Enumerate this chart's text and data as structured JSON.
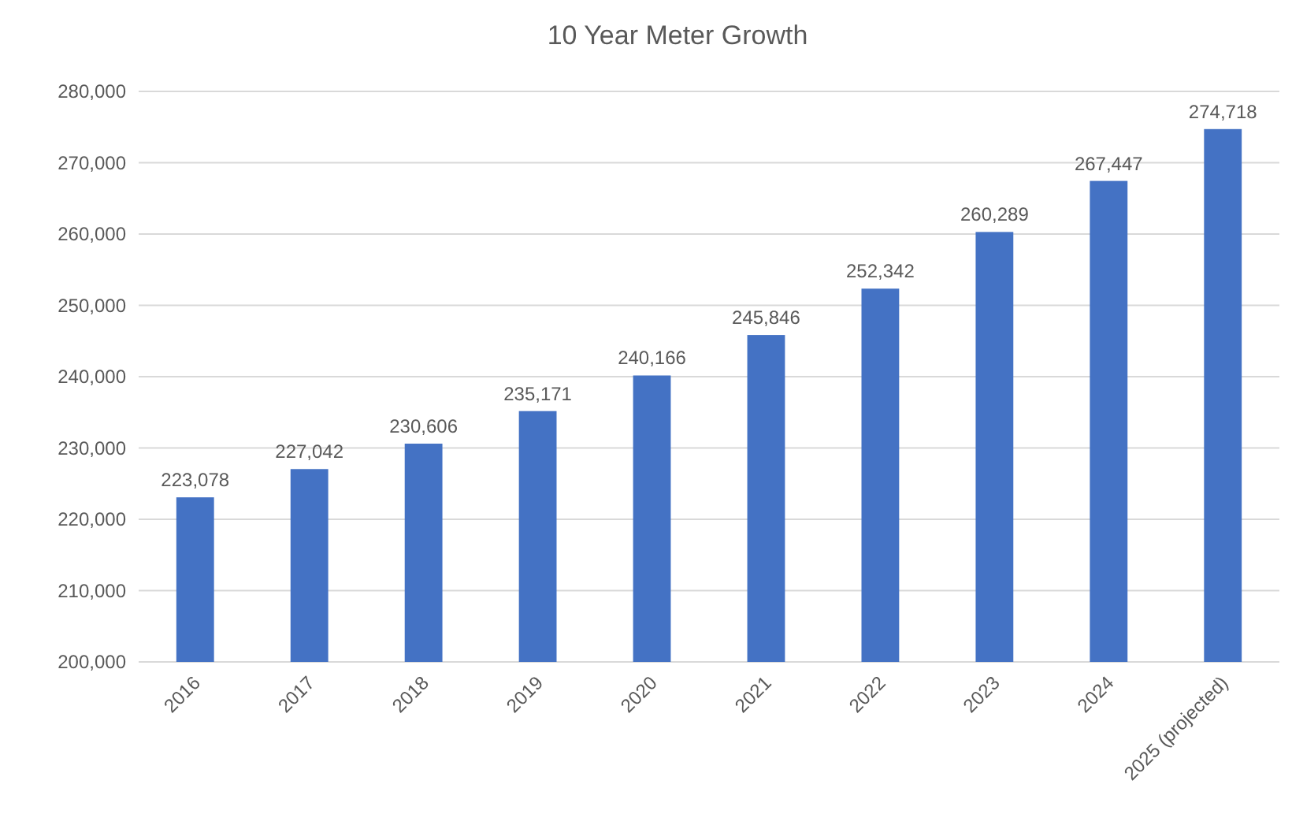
{
  "chart_data": {
    "type": "bar",
    "title": "10 Year Meter Growth",
    "categories": [
      "2016",
      "2017",
      "2018",
      "2019",
      "2020",
      "2021",
      "2022",
      "2023",
      "2024",
      "2025 (projected)"
    ],
    "values": [
      223078,
      227042,
      230606,
      235171,
      240166,
      245846,
      252342,
      260289,
      267447,
      274718
    ],
    "color": "#4472c4",
    "ylim": [
      200000,
      280000
    ],
    "yticks": [
      {
        "value": 200000,
        "label": "200,000"
      },
      {
        "value": 210000,
        "label": "210,000"
      },
      {
        "value": 220000,
        "label": "220,000"
      },
      {
        "value": 230000,
        "label": "230,000"
      },
      {
        "value": 240000,
        "label": "240,000"
      },
      {
        "value": 250000,
        "label": "250,000"
      },
      {
        "value": 260000,
        "label": "260,000"
      },
      {
        "value": 270000,
        "label": "270,000"
      },
      {
        "value": 280000,
        "label": "280,000"
      }
    ],
    "value_labels": [
      "223,078",
      "227,042",
      "230,606",
      "235,171",
      "240,166",
      "245,846",
      "252,342",
      "260,289",
      "267,447",
      "274,718"
    ],
    "grid": "y"
  }
}
